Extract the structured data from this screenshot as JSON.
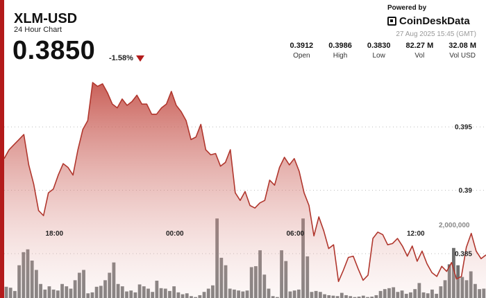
{
  "header": {
    "title": "XLM-USD",
    "subtitle": "24 Hour Chart",
    "price": "0.3850",
    "change": "-1.58%",
    "powered_by": "Powered by",
    "brand": "CoinDeskData",
    "timestamp": "27 Aug 2025 15:45 (GMT)"
  },
  "stats": [
    {
      "value": "0.3912",
      "label": "Open"
    },
    {
      "value": "0.3986",
      "label": "High"
    },
    {
      "value": "0.3830",
      "label": "Low"
    },
    {
      "value": "82.27 M",
      "label": "Vol"
    },
    {
      "value": "32.08 M",
      "label": "Vol USD"
    }
  ],
  "colors": {
    "accent": "#b31b1b",
    "line": "#b0362d",
    "volume": "#555555"
  },
  "chart_data": {
    "type": "area",
    "title": "XLM-USD",
    "subtitle": "24 Hour Chart",
    "x_ticks": [
      "18:00",
      "00:00",
      "06:00",
      "12:00"
    ],
    "x_tick_hours": [
      2.5,
      8.5,
      14.5,
      20.5
    ],
    "y_ticks": [
      0.385,
      0.39,
      0.395
    ],
    "y_tick_labels": [
      "0.385",
      "0.39",
      "0.395"
    ],
    "ylim": [
      0.3815,
      0.4002
    ],
    "xlim": [
      0,
      24
    ],
    "grid": "horizontal-dotted",
    "price": [
      0.3925,
      0.3932,
      0.3936,
      0.394,
      0.3944,
      0.392,
      0.3905,
      0.3884,
      0.388,
      0.3898,
      0.3901,
      0.3912,
      0.3921,
      0.3918,
      0.3912,
      0.3932,
      0.3948,
      0.3955,
      0.3985,
      0.3982,
      0.3984,
      0.3977,
      0.3968,
      0.3965,
      0.3972,
      0.3967,
      0.397,
      0.3975,
      0.3968,
      0.3968,
      0.396,
      0.396,
      0.3965,
      0.3968,
      0.3978,
      0.3967,
      0.3962,
      0.3955,
      0.394,
      0.3942,
      0.3952,
      0.3932,
      0.3928,
      0.3929,
      0.3919,
      0.3922,
      0.3932,
      0.3898,
      0.3892,
      0.3899,
      0.3888,
      0.3886,
      0.389,
      0.3892,
      0.3908,
      0.3904,
      0.3918,
      0.3926,
      0.392,
      0.3925,
      0.3915,
      0.3898,
      0.3888,
      0.3864,
      0.3879,
      0.3868,
      0.3854,
      0.3857,
      0.3828,
      0.3837,
      0.3847,
      0.3848,
      0.3838,
      0.3829,
      0.3833,
      0.3862,
      0.3867,
      0.3865,
      0.3857,
      0.3858,
      0.3862,
      0.3856,
      0.3848,
      0.3856,
      0.3844,
      0.3852,
      0.3842,
      0.3835,
      0.3832,
      0.384,
      0.3836,
      0.3843,
      0.383,
      0.3832,
      0.3855,
      0.3866,
      0.3852,
      0.3846,
      0.3849
    ],
    "volume_label": "2,000,000",
    "volume": [
      240000,
      220000,
      150000,
      700000,
      980000,
      1040000,
      800000,
      600000,
      300000,
      180000,
      250000,
      180000,
      160000,
      300000,
      250000,
      200000,
      380000,
      540000,
      600000,
      100000,
      120000,
      240000,
      260000,
      380000,
      540000,
      760000,
      300000,
      250000,
      140000,
      160000,
      120000,
      290000,
      250000,
      200000,
      130000,
      370000,
      210000,
      200000,
      150000,
      250000,
      120000,
      80000,
      100000,
      40000,
      20000,
      60000,
      130000,
      200000,
      270000,
      1700000,
      860000,
      700000,
      200000,
      180000,
      160000,
      140000,
      160000,
      660000,
      680000,
      1020000,
      500000,
      200000,
      40000,
      20000,
      1020000,
      790000,
      140000,
      160000,
      180000,
      1700000,
      890000,
      130000,
      150000,
      130000,
      80000,
      60000,
      50000,
      40000,
      110000,
      60000,
      40000,
      20000,
      30000,
      50000,
      20000,
      30000,
      60000,
      150000,
      190000,
      210000,
      230000,
      130000,
      160000,
      90000,
      120000,
      190000,
      320000,
      120000,
      100000,
      180000,
      90000,
      250000,
      380000,
      720000,
      1070000,
      700000,
      450000,
      380000,
      570000,
      300000,
      190000,
      200000
    ]
  }
}
